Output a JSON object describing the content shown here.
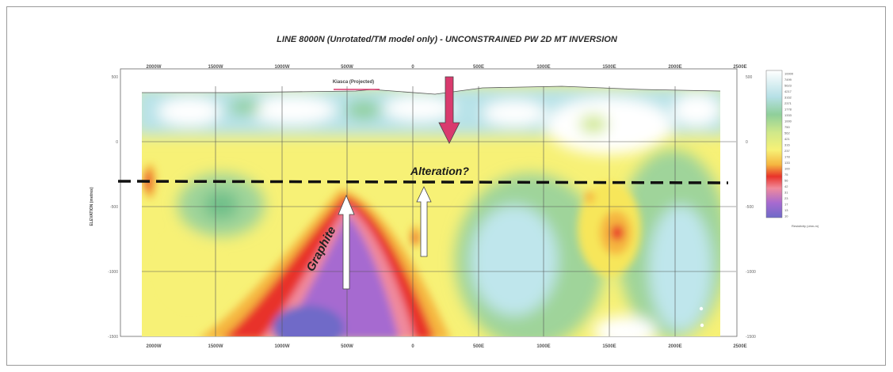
{
  "figure": {
    "title": "LINE 8000N (Unrotated/TM model only) - UNCONSTRAINED PW 2D MT INVERSION",
    "y_axis_label": "ELEVATION (metres)",
    "x_ticks": [
      "2000W",
      "1500W",
      "1000W",
      "500W",
      "0",
      "500E",
      "1000E",
      "1500E",
      "2000E",
      "2500E"
    ],
    "left_y_ticks": [
      "500",
      "0",
      "-500",
      "-1000",
      "-1500"
    ],
    "right_y_ticks": [
      "500",
      "0",
      "-500",
      "-1000",
      "-1500"
    ],
    "prospect_label": "Kiasca (Projected)",
    "alteration_label": "Alteration?",
    "graphite_label": "Graphite",
    "legend": {
      "values": [
        "10000",
        "7499",
        "5623",
        "4217",
        "3162",
        "2371",
        "1778",
        "1333",
        "1000",
        "750",
        "562",
        "421",
        "316",
        "237",
        "178",
        "133",
        "100",
        "75",
        "56",
        "42",
        "31",
        "23",
        "17",
        "13",
        "10"
      ],
      "units_label": "Resistivity (ohm-m)"
    }
  },
  "colors": {
    "conductive": "#7b4fc4",
    "high": "#e8332a",
    "mid": "#f7f176",
    "resistive": "#ffffff",
    "dashed_line": "#111111",
    "down_arrow": "#d93a6e",
    "up_arrow": "#ffffff"
  }
}
